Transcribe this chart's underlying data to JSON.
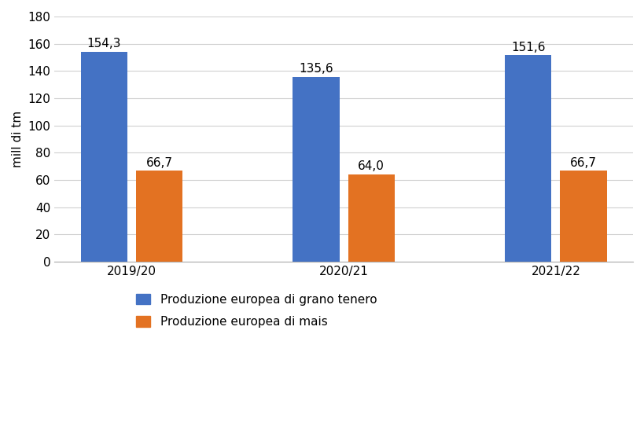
{
  "categories": [
    "2019/20",
    "2020/21",
    "2021/22"
  ],
  "blue_values": [
    154.3,
    135.6,
    151.6
  ],
  "orange_values": [
    66.7,
    64.0,
    66.7
  ],
  "blue_color": "#4472C4",
  "orange_color": "#E37222",
  "ylabel": "mill di tm",
  "ylim": [
    0,
    180
  ],
  "yticks": [
    0,
    20,
    40,
    60,
    80,
    100,
    120,
    140,
    160,
    180
  ],
  "legend_blue": "Produzione europea di grano tenero",
  "legend_orange": "Produzione europea di mais",
  "bar_width": 0.22,
  "bar_gap": 0.04,
  "bar_label_fontsize": 11,
  "axis_label_fontsize": 11,
  "tick_fontsize": 11,
  "legend_fontsize": 11,
  "background_color": "#ffffff",
  "grid_color": "#d0d0d0"
}
